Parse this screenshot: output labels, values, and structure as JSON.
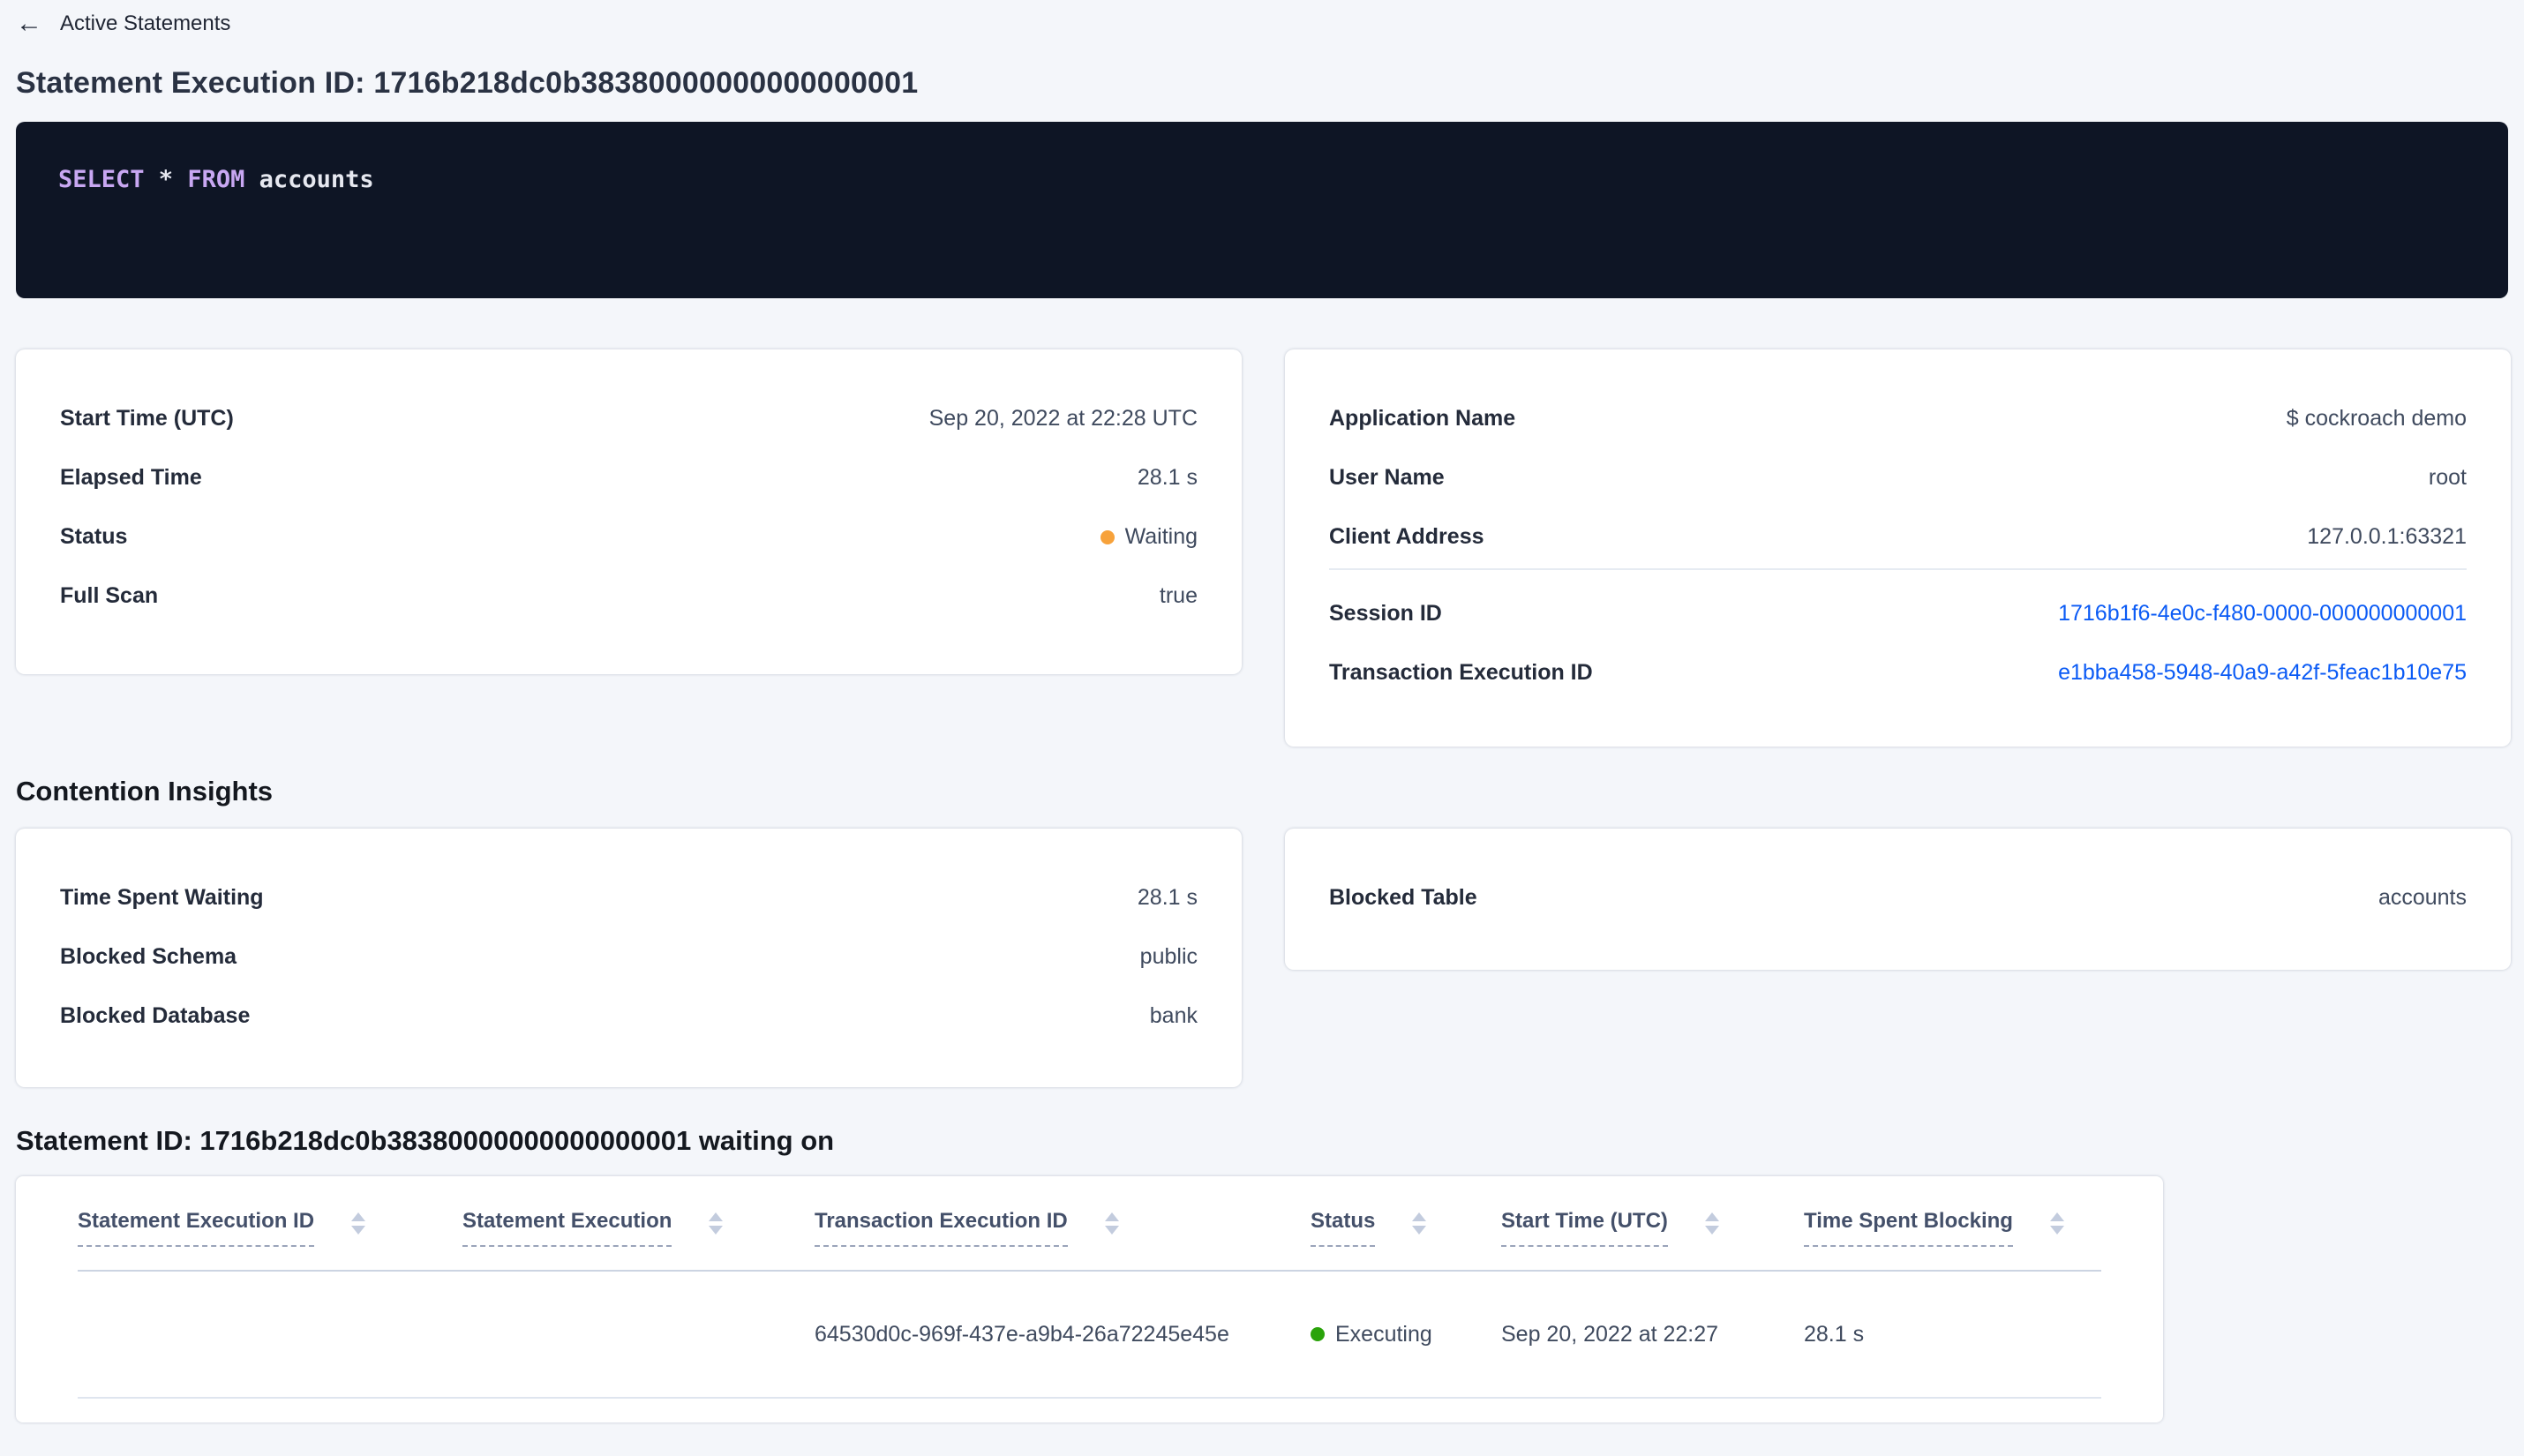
{
  "header": {
    "back_label": "Active Statements",
    "title": "Statement Execution ID: 1716b218dc0b38380000000000000001"
  },
  "icons": {
    "back_arrow": "←",
    "sort_arrows": "up-down-triangles"
  },
  "sql": {
    "tokens": {
      "kw1": "SELECT",
      "op": " * ",
      "kw2": "FROM",
      "ident": " accounts"
    }
  },
  "execution_details": {
    "start_time": {
      "label": "Start Time (UTC)",
      "value": "Sep 20, 2022 at 22:28 UTC"
    },
    "elapsed_time": {
      "label": "Elapsed Time",
      "value": "28.1 s"
    },
    "status": {
      "label": "Status",
      "value": "Waiting",
      "color": "#f7a23b"
    },
    "full_scan": {
      "label": "Full Scan",
      "value": "true"
    }
  },
  "session_details": {
    "application_name": {
      "label": "Application Name",
      "value": "$ cockroach demo"
    },
    "user_name": {
      "label": "User Name",
      "value": "root"
    },
    "client_address": {
      "label": "Client Address",
      "value": "127.0.0.1:63321"
    },
    "session_id": {
      "label": "Session ID",
      "value": "1716b1f6-4e0c-f480-0000-000000000001"
    },
    "transaction_execution_id": {
      "label": "Transaction Execution ID",
      "value": "e1bba458-5948-40a9-a42f-5feac1b10e75"
    }
  },
  "contention": {
    "heading": "Contention Insights",
    "time_spent_waiting": {
      "label": "Time Spent Waiting",
      "value": "28.1 s"
    },
    "blocked_schema": {
      "label": "Blocked Schema",
      "value": "public"
    },
    "blocked_database": {
      "label": "Blocked Database",
      "value": "bank"
    },
    "blocked_table": {
      "label": "Blocked Table",
      "value": "accounts"
    }
  },
  "waiting_on": {
    "heading": "Statement ID: 1716b218dc0b38380000000000000001 waiting on",
    "columns": [
      "Statement Execution ID",
      "Statement Execution",
      "Transaction Execution ID",
      "Status",
      "Start Time (UTC)",
      "Time Spent Blocking"
    ],
    "row": {
      "statement_execution_id": "",
      "statement_execution": "",
      "transaction_execution_id": "64530d0c-969f-437e-a9b4-26a72245e45e",
      "status": "Executing",
      "status_color": "#2aa30a",
      "start_time": "Sep 20, 2022 at 22:27",
      "time_spent_blocking": "28.1 s"
    }
  },
  "colors": {
    "page_background": "#f4f6fa",
    "card_background": "#ffffff",
    "link_blue": "#0b5bf5",
    "status_waiting_orange": "#f7a23b",
    "status_executing_green": "#2aa30a",
    "sql_box_background": "#0e1525",
    "sql_keyword_purple": "#c8a7f2",
    "sql_text": "#e6e8f0",
    "heading_text": "#14181f",
    "label_text": "#242b3a",
    "value_text": "#3f4a5e"
  }
}
